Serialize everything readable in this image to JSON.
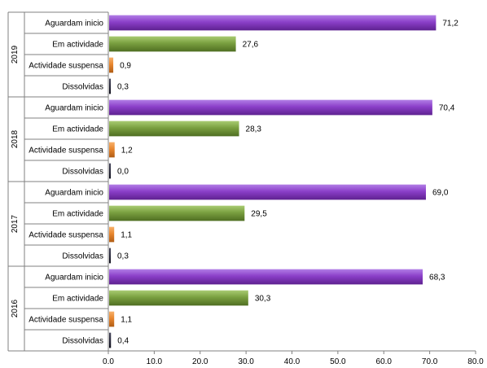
{
  "chart_data": {
    "type": "bar",
    "orientation": "horizontal",
    "xlim": [
      0,
      80
    ],
    "xticks": [
      "0.0",
      "10.0",
      "20.0",
      "30.0",
      "40.0",
      "50.0",
      "60.0",
      "70.0",
      "80.0"
    ],
    "grid": false,
    "legend": "none",
    "categories": [
      "Aguardam inicio",
      "Em actividade",
      "Actividade suspensa",
      "Dissolvidas"
    ],
    "category_colors": [
      "#8b3fc9",
      "#7aa040",
      "#e8862e",
      "#1a1a2e"
    ],
    "groups": [
      {
        "year": "2019",
        "values": [
          71.2,
          27.6,
          0.9,
          0.3
        ],
        "labels": [
          "71,2",
          "27,6",
          "0,9",
          "0,3"
        ]
      },
      {
        "year": "2018",
        "values": [
          70.4,
          28.3,
          1.2,
          0.0
        ],
        "labels": [
          "70,4",
          "28,3",
          "1,2",
          "0,0"
        ]
      },
      {
        "year": "2017",
        "values": [
          69.0,
          29.5,
          1.1,
          0.3
        ],
        "labels": [
          "69,0",
          "29,5",
          "1,1",
          "0,3"
        ]
      },
      {
        "year": "2016",
        "values": [
          68.3,
          30.3,
          1.1,
          0.4
        ],
        "labels": [
          "68,3",
          "30,3",
          "1,1",
          "0,4"
        ]
      }
    ]
  }
}
